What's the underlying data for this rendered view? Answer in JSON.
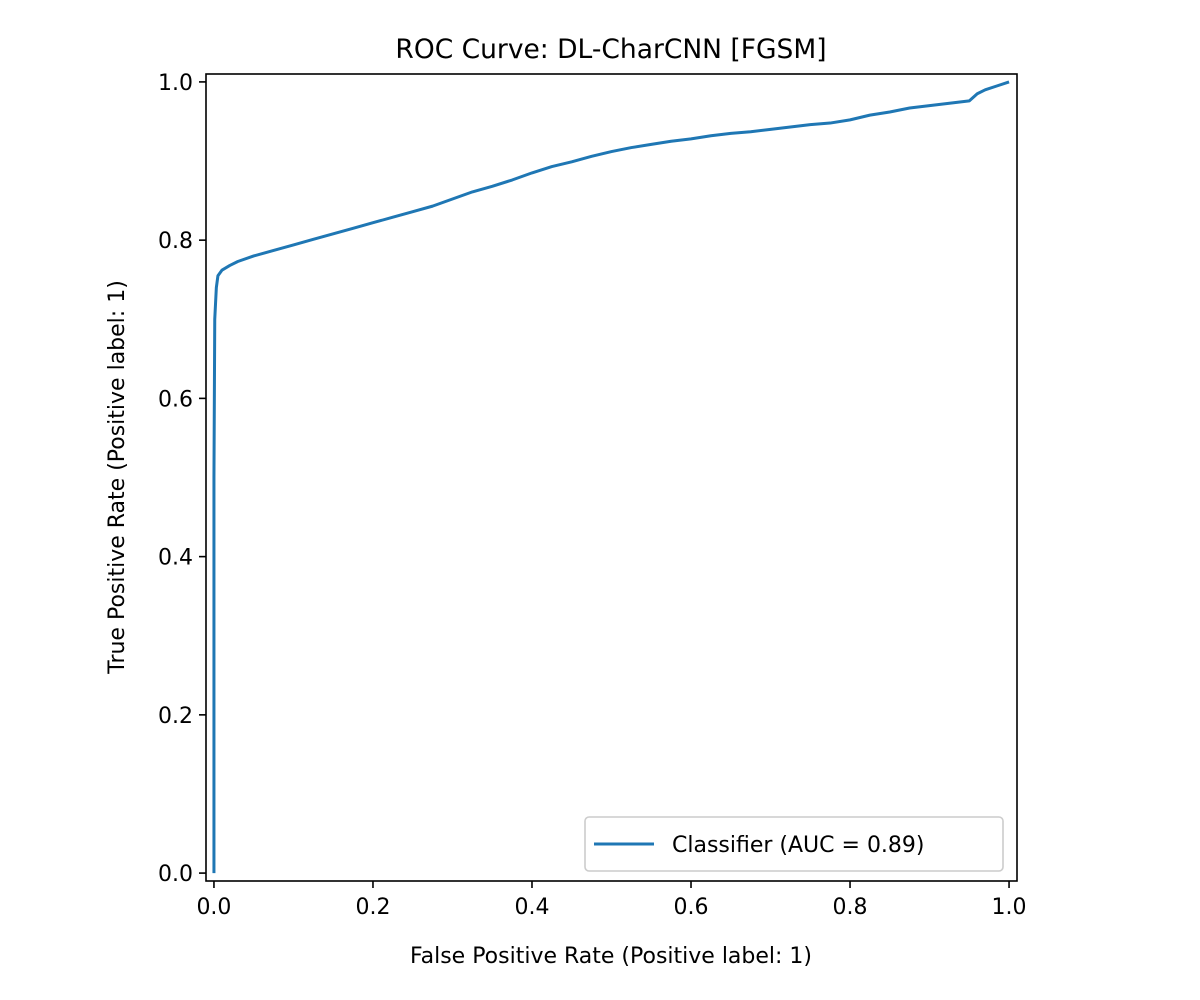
{
  "chart_data": {
    "type": "line",
    "title": "ROC Curve: DL-CharCNN [FGSM]",
    "xlabel": "False Positive Rate (Positive label: 1)",
    "ylabel": "True Positive Rate (Positive label: 1)",
    "xlim": [
      -0.01,
      1.01
    ],
    "ylim": [
      -0.01,
      1.01
    ],
    "x_ticks": [
      "0.0",
      "0.2",
      "0.4",
      "0.6",
      "0.8",
      "1.0"
    ],
    "y_ticks": [
      "0.0",
      "0.2",
      "0.4",
      "0.6",
      "0.8",
      "1.0"
    ],
    "grid": false,
    "legend_position": "bottom-right",
    "series": [
      {
        "name": "Classifier (AUC = 0.89)",
        "color": "#1f77b4",
        "points": [
          [
            0.0,
            0.0
          ],
          [
            0.0,
            0.5
          ],
          [
            0.001,
            0.7
          ],
          [
            0.002,
            0.72
          ],
          [
            0.003,
            0.74
          ],
          [
            0.005,
            0.755
          ],
          [
            0.01,
            0.762
          ],
          [
            0.02,
            0.768
          ],
          [
            0.03,
            0.773
          ],
          [
            0.05,
            0.78
          ],
          [
            0.075,
            0.787
          ],
          [
            0.1,
            0.794
          ],
          [
            0.125,
            0.801
          ],
          [
            0.15,
            0.808
          ],
          [
            0.175,
            0.815
          ],
          [
            0.2,
            0.822
          ],
          [
            0.225,
            0.829
          ],
          [
            0.25,
            0.836
          ],
          [
            0.275,
            0.843
          ],
          [
            0.3,
            0.852
          ],
          [
            0.325,
            0.861
          ],
          [
            0.35,
            0.868
          ],
          [
            0.375,
            0.876
          ],
          [
            0.4,
            0.885
          ],
          [
            0.425,
            0.893
          ],
          [
            0.45,
            0.899
          ],
          [
            0.475,
            0.906
          ],
          [
            0.5,
            0.912
          ],
          [
            0.525,
            0.917
          ],
          [
            0.55,
            0.921
          ],
          [
            0.575,
            0.925
          ],
          [
            0.6,
            0.928
          ],
          [
            0.625,
            0.932
          ],
          [
            0.65,
            0.935
          ],
          [
            0.675,
            0.937
          ],
          [
            0.7,
            0.94
          ],
          [
            0.725,
            0.943
          ],
          [
            0.75,
            0.946
          ],
          [
            0.775,
            0.948
          ],
          [
            0.8,
            0.952
          ],
          [
            0.825,
            0.958
          ],
          [
            0.85,
            0.962
          ],
          [
            0.875,
            0.967
          ],
          [
            0.9,
            0.97
          ],
          [
            0.925,
            0.973
          ],
          [
            0.95,
            0.976
          ],
          [
            0.96,
            0.985
          ],
          [
            0.97,
            0.99
          ],
          [
            0.985,
            0.995
          ],
          [
            1.0,
            1.0
          ]
        ]
      }
    ]
  }
}
